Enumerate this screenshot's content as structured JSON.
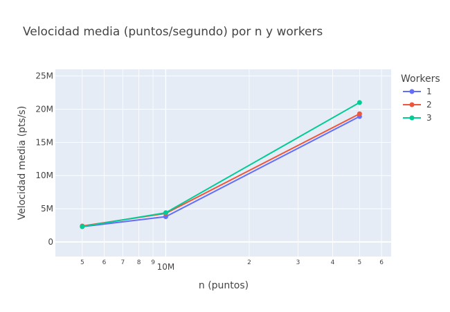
{
  "chart_data": {
    "type": "line",
    "title": "Velocidad media (puntos/segundo) por n y workers",
    "xlabel": "n (puntos)",
    "ylabel": "Velocidad media (pts/s)",
    "x_scale": "log",
    "x_range": [
      4000000,
      65000000
    ],
    "ylim": [
      -2200000,
      26000000
    ],
    "grid": true,
    "legend": {
      "title": "Workers",
      "position": "right"
    },
    "x_tick_labels": [
      {
        "value": 5000000,
        "label": "5",
        "minor": true
      },
      {
        "value": 6000000,
        "label": "6",
        "minor": true
      },
      {
        "value": 7000000,
        "label": "7",
        "minor": true
      },
      {
        "value": 8000000,
        "label": "8",
        "minor": true
      },
      {
        "value": 9000000,
        "label": "9",
        "minor": true
      },
      {
        "value": 10000000,
        "label": "10M",
        "minor": false
      },
      {
        "value": 20000000,
        "label": "2",
        "minor": true
      },
      {
        "value": 30000000,
        "label": "3",
        "minor": true
      },
      {
        "value": 40000000,
        "label": "4",
        "minor": true
      },
      {
        "value": 50000000,
        "label": "5",
        "minor": true
      },
      {
        "value": 60000000,
        "label": "6",
        "minor": true
      }
    ],
    "y_ticks": [
      {
        "value": 0,
        "label": "0"
      },
      {
        "value": 5000000,
        "label": "5M"
      },
      {
        "value": 10000000,
        "label": "10M"
      },
      {
        "value": 15000000,
        "label": "15M"
      },
      {
        "value": 20000000,
        "label": "20M"
      },
      {
        "value": 25000000,
        "label": "25M"
      }
    ],
    "x": [
      5000000,
      10000000,
      50000000
    ],
    "series": [
      {
        "name": "1",
        "color": "#636efa",
        "values": [
          2300000,
          3800000,
          18900000
        ]
      },
      {
        "name": "2",
        "color": "#ef553b",
        "values": [
          2400000,
          4300000,
          19300000
        ]
      },
      {
        "name": "3",
        "color": "#00cc96",
        "values": [
          2300000,
          4400000,
          21000000
        ]
      }
    ]
  }
}
